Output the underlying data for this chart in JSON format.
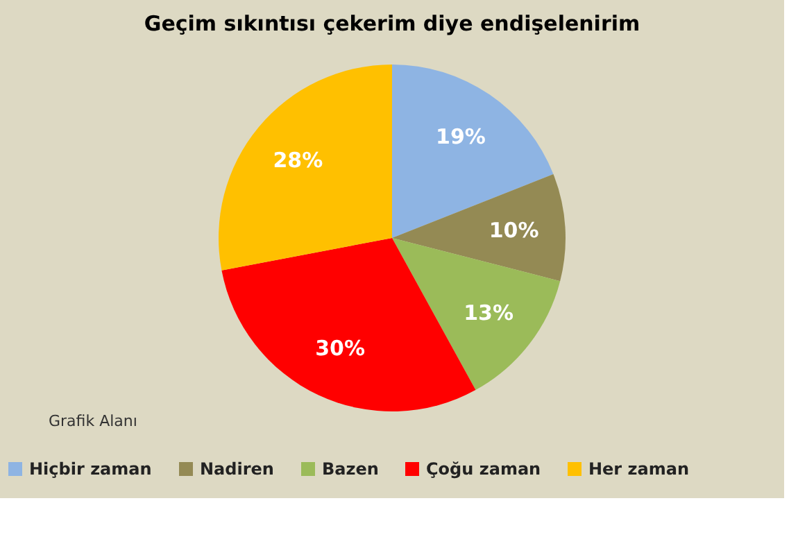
{
  "chart_data": {
    "type": "pie",
    "title": "Geçim sıkıntısı çekerim diye endişelenirim",
    "categories": [
      "Hiçbir zaman",
      "Nadiren",
      "Bazen",
      "Çoğu zaman",
      "Her zaman"
    ],
    "values": [
      19,
      10,
      13,
      30,
      28
    ],
    "value_labels": [
      "19%",
      "10%",
      "13%",
      "30%",
      "28%"
    ],
    "colors": [
      "#8eb4e3",
      "#948a54",
      "#9bbb59",
      "#ff0000",
      "#ffc000"
    ],
    "legend": "bottom",
    "annotations": [
      "Grafik Alanı"
    ]
  }
}
